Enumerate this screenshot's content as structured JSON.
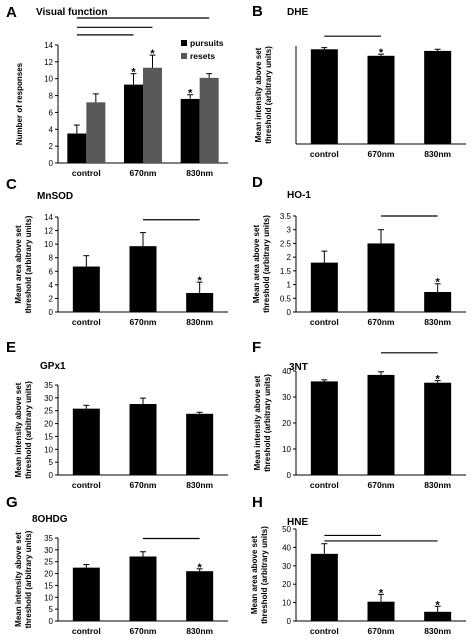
{
  "chart_data": [
    {
      "panel": "A",
      "title": "Visual function",
      "type": "bar",
      "ylabel": "Number of responses",
      "categories": [
        "control",
        "670nm",
        "830nm"
      ],
      "ylim": [
        0,
        14
      ],
      "yticks": [
        0,
        2,
        4,
        6,
        8,
        10,
        12,
        14
      ],
      "series": [
        {
          "name": "pursuits",
          "color": "#000000",
          "values": [
            3.5,
            9.3,
            7.6
          ],
          "errors": [
            1.0,
            1.3,
            0.5
          ]
        },
        {
          "name": "resets",
          "color": "#595959",
          "values": [
            7.2,
            11.3,
            10.1
          ],
          "errors": [
            1.0,
            1.5,
            0.5
          ]
        }
      ],
      "stars": [
        {
          "category": 1,
          "series": 0
        },
        {
          "category": 1,
          "series": 1
        },
        {
          "category": 2,
          "series": 0
        }
      ],
      "lines": [
        {
          "from": [
            0,
            0
          ],
          "to": [
            2,
            1
          ],
          "level": 17.2
        },
        {
          "from": [
            0,
            0
          ],
          "to": [
            1,
            1
          ],
          "level": 16.1
        },
        {
          "from": [
            0,
            0
          ],
          "to": [
            1,
            0
          ],
          "level": 15.2
        }
      ]
    },
    {
      "panel": "B",
      "title": "DHE",
      "type": "bar",
      "ylabel": [
        "Mean intensity above set",
        "threshold (arbitrary units)"
      ],
      "categories": [
        "control",
        "670nm",
        "830nm"
      ],
      "ylim": [
        0,
        60
      ],
      "yticks": [],
      "series": [
        {
          "name": "",
          "color": "#000000",
          "values": [
            58,
            54,
            57
          ],
          "errors": [
            1,
            1,
            1
          ]
        }
      ],
      "stars": [
        {
          "category": 1,
          "series": 0
        }
      ],
      "lines": [
        {
          "from": [
            0,
            0
          ],
          "to": [
            1,
            0
          ],
          "level": 66
        }
      ]
    },
    {
      "panel": "C",
      "title": "MnSOD",
      "type": "bar",
      "ylabel": [
        "Mean area  above set",
        "threshold (arbitrary units)"
      ],
      "categories": [
        "control",
        "670nm",
        "830nm"
      ],
      "ylim": [
        0,
        14
      ],
      "yticks": [
        0,
        2,
        4,
        6,
        8,
        10,
        12,
        14
      ],
      "series": [
        {
          "name": "",
          "color": "#000000",
          "values": [
            6.7,
            9.7,
            2.8
          ],
          "errors": [
            1.6,
            2.0,
            1.6
          ]
        }
      ],
      "stars": [
        {
          "category": 2,
          "series": 0
        }
      ],
      "lines": [
        {
          "from": [
            1,
            0
          ],
          "to": [
            2,
            0
          ],
          "level": 13.6
        }
      ]
    },
    {
      "panel": "D",
      "title": "HO-1",
      "type": "bar",
      "ylabel": [
        "Mean area above set",
        "threshold (arbitrary units)"
      ],
      "categories": [
        "control",
        "670nm",
        "830nm"
      ],
      "ylim": [
        0,
        3.5
      ],
      "yticks": [
        0,
        0.5,
        1,
        1.5,
        2,
        2.5,
        3,
        3.5
      ],
      "series": [
        {
          "name": "",
          "color": "#000000",
          "values": [
            1.8,
            2.5,
            0.73
          ],
          "errors": [
            0.42,
            0.5,
            0.3
          ]
        }
      ],
      "stars": [
        {
          "category": 2,
          "series": 0
        }
      ],
      "lines": [
        {
          "from": [
            1,
            0
          ],
          "to": [
            2,
            0
          ],
          "level": 3.5
        }
      ]
    },
    {
      "panel": "E",
      "title": "GPx1",
      "type": "bar",
      "ylabel": [
        "Mean intensity above set",
        "threshold (arbitrary units)"
      ],
      "categories": [
        "control",
        "670nm",
        "830nm"
      ],
      "ylim": [
        0,
        35
      ],
      "yticks": [
        0,
        5,
        10,
        15,
        20,
        25,
        30,
        35
      ],
      "series": [
        {
          "name": "",
          "color": "#000000",
          "values": [
            25.8,
            27.6,
            23.8
          ],
          "errors": [
            1.3,
            2.3,
            0.6
          ]
        }
      ],
      "stars": [],
      "lines": []
    },
    {
      "panel": "F",
      "title": "3NT",
      "type": "bar",
      "ylabel": [
        "Mean intensity above set",
        "threshold (arbitrary units)"
      ],
      "categories": [
        "control",
        "670nm",
        "830nm"
      ],
      "ylim": [
        0,
        40
      ],
      "yticks": [
        0,
        10,
        20,
        30,
        40
      ],
      "series": [
        {
          "name": "",
          "color": "#000000",
          "values": [
            36,
            38.5,
            35.5
          ],
          "errors": [
            0.6,
            1.2,
            0.8
          ]
        }
      ],
      "stars": [
        {
          "category": 2,
          "series": 0
        }
      ],
      "lines": [
        {
          "from": [
            1,
            0
          ],
          "to": [
            2,
            0
          ],
          "level": 47
        }
      ]
    },
    {
      "panel": "G",
      "title": "8OHDG",
      "type": "bar",
      "ylabel": [
        "Mean intensity above set",
        "threshold (arbitrary units)"
      ],
      "categories": [
        "control",
        "670nm",
        "830nm"
      ],
      "ylim": [
        0,
        35
      ],
      "yticks": [
        0,
        5,
        10,
        15,
        20,
        25,
        30,
        35
      ],
      "series": [
        {
          "name": "",
          "color": "#000000",
          "values": [
            22.5,
            27.2,
            21.0
          ],
          "errors": [
            1.3,
            2.0,
            1.0
          ]
        }
      ],
      "stars": [
        {
          "category": 2,
          "series": 0
        }
      ],
      "lines": [
        {
          "from": [
            1,
            0
          ],
          "to": [
            2,
            0
          ],
          "level": 34.8
        }
      ]
    },
    {
      "panel": "H",
      "title": "HNE",
      "type": "bar",
      "ylabel": [
        "Mean area above set",
        "threshold (arbitrary units)"
      ],
      "categories": [
        "control",
        "670nm",
        "830nm"
      ],
      "ylim": [
        0,
        50
      ],
      "yticks": [
        0,
        10,
        20,
        30,
        40,
        50
      ],
      "series": [
        {
          "name": "",
          "color": "#000000",
          "values": [
            36.5,
            10.5,
            5.0
          ],
          "errors": [
            5.5,
            4.0,
            3.0
          ]
        }
      ],
      "stars": [
        {
          "category": 1,
          "series": 0
        },
        {
          "category": 2,
          "series": 0
        }
      ],
      "lines": [
        {
          "from": [
            0,
            0
          ],
          "to": [
            1,
            0
          ],
          "level": 46.5
        },
        {
          "from": [
            0,
            0
          ],
          "to": [
            2,
            0
          ],
          "level": 43.5
        }
      ]
    }
  ]
}
